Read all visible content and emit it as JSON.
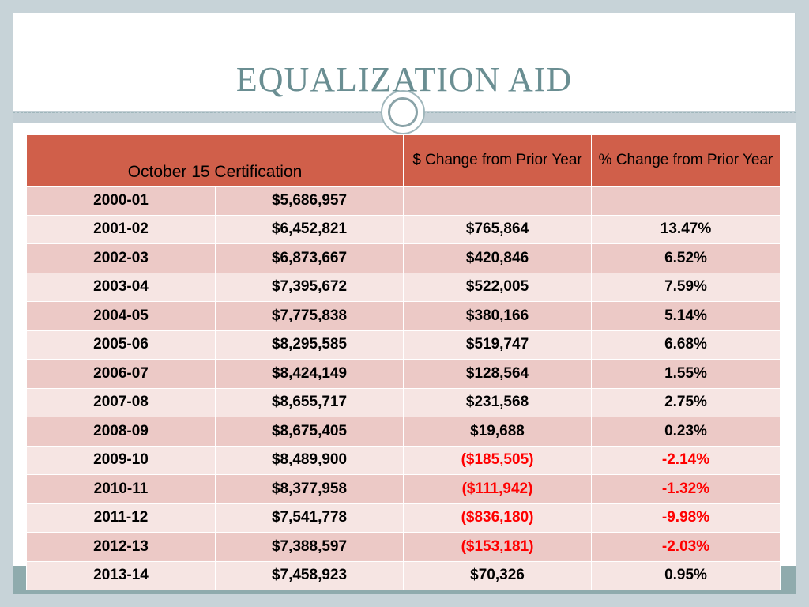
{
  "slide": {
    "title": "EQUALIZATION AID"
  },
  "table": {
    "headers": {
      "certification": "October 15 Certification",
      "dollar_change": "$ Change from Prior Year",
      "pct_change": "% Change from Prior Year"
    },
    "rows": [
      {
        "year": "2000-01",
        "amount": "$5,686,957",
        "dollar_change": "",
        "pct_change": "",
        "negative": false
      },
      {
        "year": "2001-02",
        "amount": "$6,452,821",
        "dollar_change": "$765,864",
        "pct_change": "13.47%",
        "negative": false
      },
      {
        "year": "2002-03",
        "amount": "$6,873,667",
        "dollar_change": "$420,846",
        "pct_change": "6.52%",
        "negative": false
      },
      {
        "year": "2003-04",
        "amount": "$7,395,672",
        "dollar_change": "$522,005",
        "pct_change": "7.59%",
        "negative": false
      },
      {
        "year": "2004-05",
        "amount": "$7,775,838",
        "dollar_change": "$380,166",
        "pct_change": "5.14%",
        "negative": false
      },
      {
        "year": "2005-06",
        "amount": "$8,295,585",
        "dollar_change": "$519,747",
        "pct_change": "6.68%",
        "negative": false
      },
      {
        "year": "2006-07",
        "amount": "$8,424,149",
        "dollar_change": "$128,564",
        "pct_change": "1.55%",
        "negative": false
      },
      {
        "year": "2007-08",
        "amount": "$8,655,717",
        "dollar_change": "$231,568",
        "pct_change": "2.75%",
        "negative": false
      },
      {
        "year": "2008-09",
        "amount": "$8,675,405",
        "dollar_change": "$19,688",
        "pct_change": "0.23%",
        "negative": false
      },
      {
        "year": "2009-10",
        "amount": "$8,489,900",
        "dollar_change": "($185,505)",
        "pct_change": "-2.14%",
        "negative": true
      },
      {
        "year": "2010-11",
        "amount": "$8,377,958",
        "dollar_change": "($111,942)",
        "pct_change": "-1.32%",
        "negative": true
      },
      {
        "year": "2011-12",
        "amount": "$7,541,778",
        "dollar_change": "($836,180)",
        "pct_change": "-9.98%",
        "negative": true
      },
      {
        "year": "2012-13",
        "amount": "$7,388,597",
        "dollar_change": "($153,181)",
        "pct_change": "-2.03%",
        "negative": true
      },
      {
        "year": "2013-14",
        "amount": "$7,458,923",
        "dollar_change": "$70,326",
        "pct_change": "0.95%",
        "negative": false
      }
    ]
  },
  "colors": {
    "header_bg": "#d05f4a",
    "row_odd": "#ecc9c6",
    "row_even": "#f6e5e3",
    "title_text": "#6a8e92",
    "negative_text": "#ff0000"
  }
}
